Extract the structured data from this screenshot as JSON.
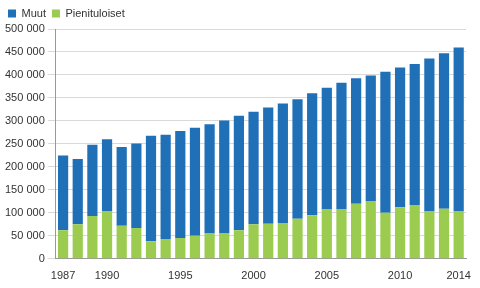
{
  "chart_data": {
    "type": "bar",
    "stacked": true,
    "grid": true,
    "legend": "top-left",
    "categories": [
      "1987",
      null,
      null,
      "1990",
      null,
      null,
      null,
      null,
      "1995",
      null,
      null,
      null,
      null,
      "2000",
      null,
      null,
      null,
      null,
      "2005",
      null,
      null,
      null,
      null,
      "2010",
      null,
      null,
      null,
      "2014"
    ],
    "series": [
      {
        "name": "Pienituloiset",
        "color": "#9bcc50",
        "values": [
          62000,
          75000,
          93000,
          103000,
          72000,
          67000,
          38000,
          43000,
          45000,
          50000,
          55000,
          55000,
          62000,
          75000,
          76000,
          78000,
          87000,
          95000,
          107000,
          107000,
          120000,
          126000,
          100000,
          112000,
          117000,
          103000,
          109000,
          103000
        ]
      },
      {
        "name": "Muut",
        "color": "#2070b8",
        "values": [
          163000,
          142000,
          155000,
          157000,
          171000,
          184000,
          230000,
          227000,
          233000,
          235000,
          238000,
          246000,
          249000,
          245000,
          253000,
          260000,
          260000,
          265000,
          265000,
          276000,
          273000,
          273000,
          307000,
          304000,
          307000,
          333000,
          338000,
          357000
        ]
      }
    ],
    "ylim": [
      0,
      500000
    ],
    "yticks": [
      0,
      {
        "value": 50000,
        "label": "50 000"
      },
      {
        "value": 100000,
        "label": "100 000"
      },
      {
        "value": 150000,
        "label": "150 000"
      },
      {
        "value": 200000,
        "label": "200 000"
      },
      {
        "value": 250000,
        "label": "250 000"
      },
      {
        "value": 300000,
        "label": "300 000"
      },
      {
        "value": 350000,
        "label": "350 000"
      },
      {
        "value": 400000,
        "label": "400 000"
      },
      {
        "value": 450000,
        "label": "450 000"
      },
      {
        "value": 500000,
        "label": "500 000"
      }
    ]
  }
}
